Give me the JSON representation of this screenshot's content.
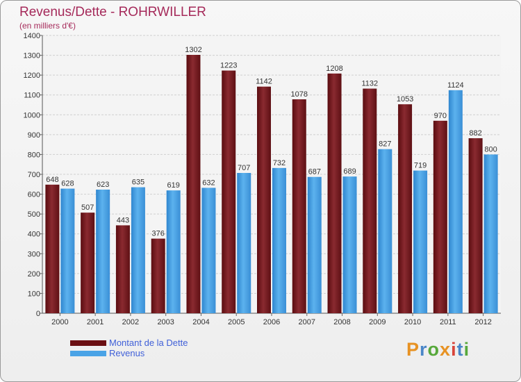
{
  "header": {
    "title": "Revenus/Dette - ROHRWILLER",
    "subtitle": "(en milliers d'€)"
  },
  "legend": {
    "items": [
      {
        "label": "Montant de la Dette",
        "color": "#6b0f12"
      },
      {
        "label": "Revenus",
        "color": "#4aa3e6"
      }
    ]
  },
  "logo": {
    "text": "Proxiti"
  },
  "chart_data": {
    "type": "bar",
    "title": "Revenus/Dette - ROHRWILLER",
    "ylabel": "(en milliers d'€)",
    "categories": [
      "2000",
      "2001",
      "2002",
      "2003",
      "2004",
      "2005",
      "2006",
      "2007",
      "2008",
      "2009",
      "2010",
      "2011",
      "2012"
    ],
    "series": [
      {
        "name": "Montant de la Dette",
        "color": "#7a1c22",
        "values": [
          648,
          507,
          443,
          376,
          1302,
          1223,
          1142,
          1078,
          1208,
          1132,
          1053,
          970,
          882
        ]
      },
      {
        "name": "Revenus",
        "color": "#4aa3e6",
        "values": [
          628,
          623,
          635,
          619,
          632,
          707,
          732,
          687,
          689,
          827,
          719,
          1124,
          800
        ]
      }
    ],
    "ylim": [
      0,
      1400
    ],
    "yticks": [
      0,
      100,
      200,
      300,
      400,
      500,
      600,
      700,
      800,
      900,
      1000,
      1100,
      1200,
      1300,
      1400
    ],
    "grid": true,
    "legend_position": "bottom-left"
  }
}
